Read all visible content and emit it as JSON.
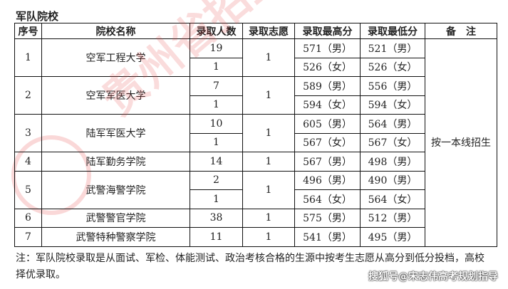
{
  "section_title": "军队院校",
  "headers": [
    "序号",
    "院校名称",
    "录取人数",
    "录取志愿",
    "录取最高分",
    "录取最低分",
    "备　注"
  ],
  "remark": "按一本线招生",
  "rows": [
    {
      "no": "1",
      "name": "空军工程大学",
      "wish": "1",
      "sub": [
        {
          "count": "19",
          "max": "571（男）",
          "min": "521（男）"
        },
        {
          "count": "1",
          "max": "526（女）",
          "min": "526（女）"
        }
      ]
    },
    {
      "no": "2",
      "name": "空军军医大学",
      "wish": "1",
      "sub": [
        {
          "count": "7",
          "max": "589（男）",
          "min": "556（男）"
        },
        {
          "count": "1",
          "max": "594（女）",
          "min": "594（女）"
        }
      ]
    },
    {
      "no": "3",
      "name": "陆军军医大学",
      "wish": "1",
      "sub": [
        {
          "count": "10",
          "max": "605（男）",
          "min": "564（男）"
        },
        {
          "count": "1",
          "max": "567（女）",
          "min": "567（女）"
        }
      ]
    },
    {
      "no": "4",
      "name": "陆军勤务学院",
      "wish": "1",
      "sub": [
        {
          "count": "14",
          "max": "567（男）",
          "min": "498（男）"
        }
      ]
    },
    {
      "no": "5",
      "name": "武警海警学院",
      "wish": "1",
      "sub": [
        {
          "count": "2",
          "max": "496（男）",
          "min": "490（男）"
        },
        {
          "count": "1",
          "max": "564（女）",
          "min": "564（女）"
        }
      ]
    },
    {
      "no": "6",
      "name": "武警警官学院",
      "wish": "1",
      "sub": [
        {
          "count": "38",
          "max": "575（男）",
          "min": "512（男）"
        }
      ]
    },
    {
      "no": "7",
      "name": "武警特种警察学院",
      "wish": "1",
      "sub": [
        {
          "count": "11",
          "max": "541（男）",
          "min": "495（男）"
        }
      ]
    }
  ],
  "note": "注：军队院校录取是从面试、军检、体能测试、政治考核合格的生源中按考生志愿从高分到低分投档，高校择优录取。",
  "watermark": "贵州省招生考试",
  "credit": "搜狐号@宋志伟高考规划指导",
  "colors": {
    "watermark": "#e63c3c"
  }
}
